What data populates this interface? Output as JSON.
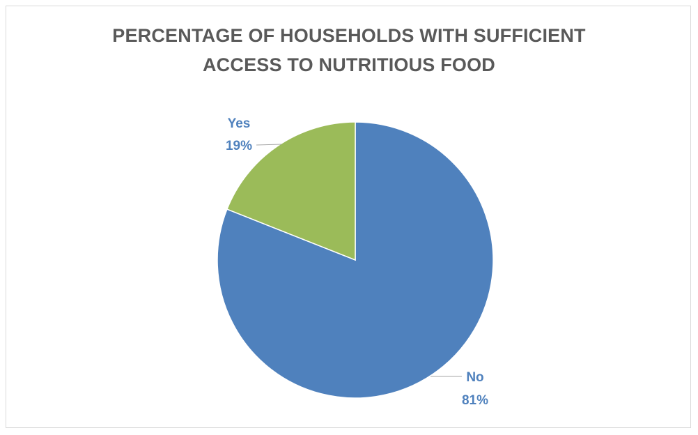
{
  "chart_data": {
    "type": "pie",
    "title_lines": [
      "PERCENTAGE OF HOUSEHOLDS WITH SUFFICIENT",
      "ACCESS TO NUTRITIOUS FOOD"
    ],
    "slices": [
      {
        "label": "No",
        "value": 81,
        "value_label": "81%",
        "color": "#4f81bd"
      },
      {
        "label": "Yes",
        "value": 19,
        "value_label": "19%",
        "color": "#9bbb59"
      }
    ],
    "legend": "none",
    "label_color": "#4f81bd"
  }
}
